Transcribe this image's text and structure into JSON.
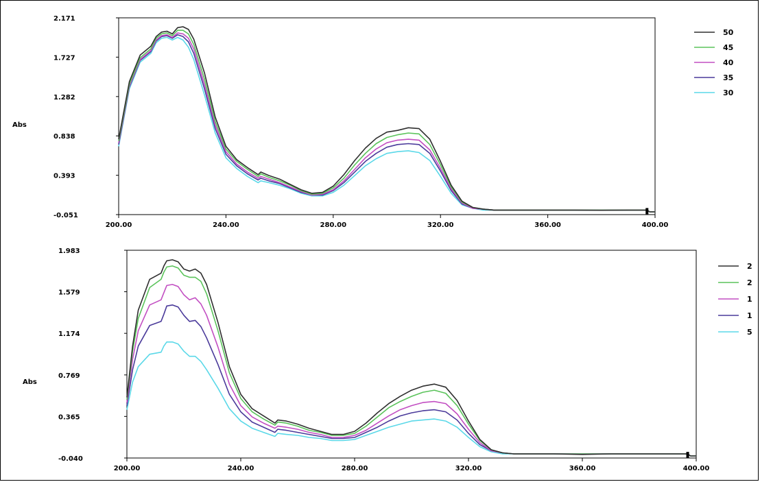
{
  "chart_data": [
    {
      "type": "line",
      "title": "",
      "xlabel": "",
      "ylabel": "Abs",
      "xlim": [
        200,
        400
      ],
      "ylim": [
        -0.051,
        2.171
      ],
      "x_ticks": [
        "200.00",
        "240.00",
        "280.00",
        "320.00",
        "360.00",
        "400.00"
      ],
      "y_ticks": [
        "-0.051",
        "0.393",
        "0.838",
        "1.282",
        "1.727",
        "2.171"
      ],
      "legend": "right",
      "series": [
        {
          "name": "50",
          "color": "#2e2e2e",
          "x": [
            200,
            204,
            208,
            212,
            214,
            216,
            218,
            220,
            222,
            224,
            226,
            228,
            232,
            236,
            240,
            244,
            248,
            252,
            253,
            256,
            260,
            264,
            268,
            272,
            276,
            280,
            284,
            288,
            292,
            296,
            300,
            304,
            308,
            312,
            316,
            320,
            324,
            328,
            332,
            336,
            340,
            350,
            360,
            370,
            380,
            390,
            397,
            398,
            400
          ],
          "y": [
            0.8,
            1.45,
            1.75,
            1.85,
            1.96,
            2.01,
            2.02,
            1.99,
            2.06,
            2.07,
            2.04,
            1.93,
            1.55,
            1.05,
            0.72,
            0.57,
            0.48,
            0.4,
            0.43,
            0.39,
            0.35,
            0.29,
            0.23,
            0.19,
            0.2,
            0.27,
            0.4,
            0.56,
            0.7,
            0.81,
            0.88,
            0.9,
            0.93,
            0.92,
            0.8,
            0.55,
            0.28,
            0.1,
            0.03,
            0.01,
            0.0,
            0.0,
            0.0,
            0.0,
            -0.002,
            0.0,
            0.0,
            -0.02,
            -0.02
          ]
        },
        {
          "name": "45",
          "color": "#5ac35a",
          "x": [
            200,
            204,
            208,
            212,
            214,
            216,
            218,
            220,
            222,
            224,
            226,
            228,
            232,
            236,
            240,
            244,
            248,
            252,
            253,
            256,
            260,
            264,
            268,
            272,
            276,
            280,
            284,
            288,
            292,
            296,
            300,
            304,
            308,
            312,
            316,
            320,
            324,
            328,
            332,
            336,
            340,
            350,
            360,
            370,
            380,
            390,
            397,
            398,
            400
          ],
          "y": [
            0.78,
            1.42,
            1.72,
            1.82,
            1.94,
            1.99,
            2.0,
            1.97,
            2.03,
            2.03,
            1.99,
            1.87,
            1.48,
            1.0,
            0.69,
            0.55,
            0.46,
            0.38,
            0.41,
            0.37,
            0.33,
            0.28,
            0.22,
            0.18,
            0.19,
            0.25,
            0.36,
            0.51,
            0.64,
            0.75,
            0.82,
            0.85,
            0.87,
            0.86,
            0.74,
            0.51,
            0.26,
            0.09,
            0.03,
            0.01,
            0.0,
            0.0,
            0.0,
            0.0,
            0.0,
            0.0,
            0.0,
            -0.02,
            -0.02
          ]
        },
        {
          "name": "40",
          "color": "#c24ec2",
          "x": [
            200,
            204,
            208,
            212,
            214,
            216,
            218,
            220,
            222,
            224,
            226,
            228,
            232,
            236,
            240,
            244,
            248,
            252,
            253,
            256,
            260,
            264,
            268,
            272,
            276,
            280,
            284,
            288,
            292,
            296,
            300,
            304,
            308,
            312,
            316,
            320,
            324,
            328,
            332,
            336,
            340,
            350,
            360,
            370,
            380,
            390,
            397,
            398,
            400
          ],
          "y": [
            0.76,
            1.4,
            1.7,
            1.8,
            1.92,
            1.97,
            1.98,
            1.95,
            2.0,
            1.99,
            1.94,
            1.82,
            1.42,
            0.96,
            0.66,
            0.52,
            0.43,
            0.36,
            0.38,
            0.35,
            0.31,
            0.26,
            0.21,
            0.17,
            0.18,
            0.23,
            0.33,
            0.46,
            0.59,
            0.69,
            0.76,
            0.79,
            0.8,
            0.79,
            0.68,
            0.47,
            0.24,
            0.08,
            0.02,
            0.01,
            0.0,
            0.0,
            0.0,
            0.0,
            0.0,
            0.0,
            0.0,
            -0.02,
            -0.02
          ]
        },
        {
          "name": "35",
          "color": "#4a3a9a",
          "x": [
            200,
            204,
            208,
            212,
            214,
            216,
            218,
            220,
            222,
            224,
            226,
            228,
            232,
            236,
            240,
            244,
            248,
            252,
            253,
            256,
            260,
            264,
            268,
            272,
            276,
            280,
            284,
            288,
            292,
            296,
            300,
            304,
            308,
            312,
            316,
            320,
            324,
            328,
            332,
            336,
            340,
            350,
            360,
            370,
            380,
            390,
            397,
            398,
            400
          ],
          "y": [
            0.74,
            1.39,
            1.69,
            1.79,
            1.91,
            1.96,
            1.97,
            1.94,
            1.98,
            1.96,
            1.9,
            1.77,
            1.37,
            0.92,
            0.63,
            0.5,
            0.41,
            0.34,
            0.36,
            0.33,
            0.3,
            0.25,
            0.2,
            0.17,
            0.17,
            0.22,
            0.31,
            0.43,
            0.55,
            0.64,
            0.71,
            0.74,
            0.75,
            0.74,
            0.64,
            0.44,
            0.22,
            0.07,
            0.02,
            0.01,
            0.0,
            0.0,
            0.0,
            0.0,
            0.0,
            0.0,
            0.0,
            -0.02,
            -0.02
          ]
        },
        {
          "name": "30",
          "color": "#5ad8e8",
          "x": [
            200,
            204,
            208,
            212,
            214,
            216,
            218,
            220,
            222,
            224,
            226,
            228,
            232,
            236,
            240,
            244,
            248,
            252,
            253,
            256,
            260,
            264,
            268,
            272,
            276,
            280,
            284,
            288,
            292,
            296,
            300,
            304,
            308,
            312,
            316,
            320,
            324,
            328,
            332,
            336,
            340,
            350,
            360,
            370,
            380,
            390,
            397,
            398,
            400
          ],
          "y": [
            0.72,
            1.37,
            1.67,
            1.77,
            1.89,
            1.94,
            1.95,
            1.92,
            1.95,
            1.92,
            1.84,
            1.7,
            1.3,
            0.87,
            0.59,
            0.47,
            0.38,
            0.31,
            0.33,
            0.31,
            0.28,
            0.24,
            0.19,
            0.16,
            0.16,
            0.2,
            0.28,
            0.39,
            0.5,
            0.58,
            0.64,
            0.66,
            0.67,
            0.65,
            0.56,
            0.38,
            0.19,
            0.06,
            0.02,
            0.0,
            0.0,
            0.0,
            0.0,
            0.0,
            0.0,
            0.0,
            0.0,
            -0.02,
            -0.02
          ]
        }
      ]
    },
    {
      "type": "line",
      "title": "",
      "xlabel": "",
      "ylabel": "Abs",
      "xlim": [
        200,
        400
      ],
      "ylim": [
        -0.04,
        1.983
      ],
      "x_ticks": [
        "200.00",
        "240.00",
        "280.00",
        "320.00",
        "360.00",
        "400.00"
      ],
      "y_ticks": [
        "-0.040",
        "0.365",
        "0.769",
        "1.174",
        "1.579",
        "1.983"
      ],
      "legend": "right",
      "series": [
        {
          "name": "2",
          "color": "#2e2e2e",
          "x": [
            200,
            202,
            204,
            208,
            212,
            213,
            214,
            216,
            218,
            220,
            222,
            224,
            226,
            228,
            232,
            236,
            240,
            244,
            248,
            252,
            253,
            256,
            260,
            264,
            268,
            272,
            276,
            280,
            284,
            288,
            292,
            296,
            300,
            304,
            308,
            312,
            316,
            320,
            324,
            328,
            332,
            336,
            340,
            350,
            360,
            370,
            380,
            390,
            397,
            398,
            400
          ],
          "y": [
            0.55,
            1.05,
            1.4,
            1.7,
            1.76,
            1.83,
            1.88,
            1.89,
            1.87,
            1.8,
            1.78,
            1.8,
            1.76,
            1.65,
            1.28,
            0.85,
            0.58,
            0.44,
            0.37,
            0.3,
            0.33,
            0.32,
            0.29,
            0.25,
            0.22,
            0.19,
            0.19,
            0.22,
            0.3,
            0.4,
            0.49,
            0.56,
            0.62,
            0.66,
            0.68,
            0.65,
            0.52,
            0.32,
            0.14,
            0.04,
            0.01,
            0.0,
            0.0,
            0.0,
            -0.005,
            0.0,
            0.0,
            0.0,
            0.0,
            -0.02,
            -0.02
          ]
        },
        {
          "name": "2",
          "color": "#5ac35a",
          "x": [
            200,
            202,
            204,
            208,
            212,
            213,
            214,
            216,
            218,
            220,
            222,
            224,
            226,
            228,
            232,
            236,
            240,
            244,
            248,
            252,
            253,
            256,
            260,
            264,
            268,
            272,
            276,
            280,
            284,
            288,
            292,
            296,
            300,
            304,
            308,
            312,
            316,
            320,
            324,
            328,
            332,
            336,
            340,
            350,
            360,
            370,
            380,
            390,
            397,
            398,
            400
          ],
          "y": [
            0.53,
            1.0,
            1.32,
            1.62,
            1.7,
            1.77,
            1.82,
            1.83,
            1.81,
            1.74,
            1.72,
            1.72,
            1.68,
            1.56,
            1.2,
            0.79,
            0.54,
            0.41,
            0.34,
            0.28,
            0.31,
            0.3,
            0.27,
            0.23,
            0.21,
            0.18,
            0.18,
            0.2,
            0.27,
            0.36,
            0.45,
            0.51,
            0.56,
            0.6,
            0.62,
            0.59,
            0.47,
            0.29,
            0.13,
            0.04,
            0.01,
            0.0,
            0.0,
            0.0,
            0.0,
            0.0,
            0.0,
            0.0,
            0.0,
            -0.02,
            -0.02
          ]
        },
        {
          "name": "1",
          "color": "#c24ec2",
          "x": [
            200,
            202,
            204,
            208,
            212,
            213,
            214,
            216,
            218,
            220,
            222,
            224,
            226,
            228,
            232,
            236,
            240,
            244,
            248,
            252,
            253,
            256,
            260,
            264,
            268,
            272,
            276,
            280,
            284,
            288,
            292,
            296,
            300,
            304,
            308,
            312,
            316,
            320,
            324,
            328,
            332,
            336,
            340,
            350,
            360,
            370,
            380,
            390,
            397,
            398,
            400
          ],
          "y": [
            0.5,
            0.92,
            1.2,
            1.45,
            1.5,
            1.57,
            1.64,
            1.65,
            1.63,
            1.55,
            1.5,
            1.52,
            1.46,
            1.35,
            1.04,
            0.68,
            0.47,
            0.36,
            0.3,
            0.25,
            0.27,
            0.26,
            0.24,
            0.21,
            0.19,
            0.16,
            0.16,
            0.18,
            0.23,
            0.3,
            0.37,
            0.43,
            0.47,
            0.5,
            0.51,
            0.49,
            0.39,
            0.24,
            0.11,
            0.03,
            0.01,
            0.0,
            0.0,
            0.0,
            0.0,
            0.0,
            0.0,
            0.0,
            0.0,
            -0.02,
            -0.02
          ]
        },
        {
          "name": "1",
          "color": "#4a3a9a",
          "x": [
            200,
            202,
            204,
            208,
            212,
            213,
            214,
            216,
            218,
            220,
            222,
            224,
            226,
            228,
            232,
            236,
            240,
            244,
            248,
            252,
            253,
            256,
            260,
            264,
            268,
            272,
            276,
            280,
            284,
            288,
            292,
            296,
            300,
            304,
            308,
            312,
            316,
            320,
            324,
            328,
            332,
            336,
            340,
            350,
            360,
            370,
            380,
            390,
            397,
            398,
            400
          ],
          "y": [
            0.47,
            0.82,
            1.05,
            1.25,
            1.29,
            1.36,
            1.44,
            1.45,
            1.43,
            1.35,
            1.29,
            1.3,
            1.24,
            1.13,
            0.87,
            0.58,
            0.41,
            0.31,
            0.26,
            0.21,
            0.24,
            0.23,
            0.21,
            0.19,
            0.17,
            0.15,
            0.15,
            0.16,
            0.21,
            0.26,
            0.32,
            0.37,
            0.4,
            0.42,
            0.43,
            0.41,
            0.33,
            0.2,
            0.09,
            0.03,
            0.01,
            0.0,
            0.0,
            0.0,
            0.0,
            0.0,
            0.0,
            0.0,
            0.0,
            -0.02,
            -0.02
          ]
        },
        {
          "name": "5",
          "color": "#5ad8e8",
          "x": [
            200,
            202,
            204,
            208,
            212,
            213,
            214,
            216,
            218,
            220,
            222,
            224,
            226,
            228,
            232,
            236,
            240,
            244,
            248,
            252,
            253,
            256,
            260,
            264,
            268,
            272,
            276,
            280,
            284,
            288,
            292,
            296,
            300,
            304,
            308,
            312,
            316,
            320,
            324,
            328,
            332,
            336,
            340,
            350,
            360,
            370,
            380,
            390,
            397,
            398,
            400
          ],
          "y": [
            0.43,
            0.7,
            0.85,
            0.97,
            0.99,
            1.05,
            1.09,
            1.09,
            1.07,
            1.0,
            0.95,
            0.95,
            0.9,
            0.82,
            0.64,
            0.44,
            0.32,
            0.25,
            0.21,
            0.17,
            0.2,
            0.19,
            0.18,
            0.16,
            0.15,
            0.13,
            0.13,
            0.14,
            0.18,
            0.22,
            0.26,
            0.29,
            0.32,
            0.33,
            0.34,
            0.32,
            0.26,
            0.16,
            0.07,
            0.02,
            0.0,
            0.0,
            0.0,
            0.0,
            0.0,
            0.0,
            0.0,
            0.0,
            0.0,
            -0.02,
            -0.02
          ]
        }
      ]
    }
  ]
}
